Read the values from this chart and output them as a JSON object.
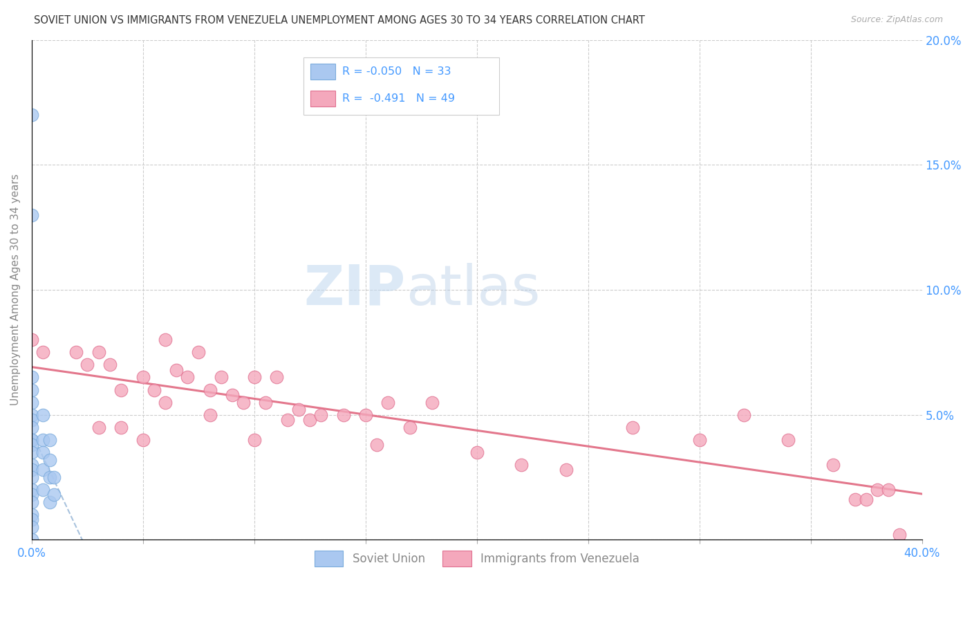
{
  "title": "SOVIET UNION VS IMMIGRANTS FROM VENEZUELA UNEMPLOYMENT AMONG AGES 30 TO 34 YEARS CORRELATION CHART",
  "source": "Source: ZipAtlas.com",
  "ylabel": "Unemployment Among Ages 30 to 34 years",
  "xlim": [
    0.0,
    0.4
  ],
  "ylim": [
    0.0,
    0.2
  ],
  "xticks": [
    0.0,
    0.05,
    0.1,
    0.15,
    0.2,
    0.25,
    0.3,
    0.35,
    0.4
  ],
  "yticks": [
    0.0,
    0.05,
    0.1,
    0.15,
    0.2
  ],
  "legend_label1": "Soviet Union",
  "legend_label2": "Immigrants from Venezuela",
  "R1": -0.05,
  "N1": 33,
  "R2": -0.491,
  "N2": 49,
  "color1": "#aac8f0",
  "color2": "#f4a8bc",
  "edge1": "#7aabdc",
  "edge2": "#e07090",
  "trend1_color": "#99b8d8",
  "trend2_color": "#e06880",
  "soviet_x": [
    0.0,
    0.0,
    0.0,
    0.0,
    0.0,
    0.0,
    0.0,
    0.0,
    0.0,
    0.0,
    0.0,
    0.0,
    0.0,
    0.0,
    0.0,
    0.0,
    0.0,
    0.0,
    0.0,
    0.0,
    0.0,
    0.0,
    0.005,
    0.005,
    0.005,
    0.005,
    0.005,
    0.008,
    0.008,
    0.008,
    0.008,
    0.01,
    0.01
  ],
  "soviet_y": [
    0.17,
    0.13,
    0.065,
    0.06,
    0.055,
    0.05,
    0.048,
    0.045,
    0.04,
    0.04,
    0.038,
    0.035,
    0.03,
    0.028,
    0.025,
    0.02,
    0.018,
    0.015,
    0.01,
    0.008,
    0.005,
    0.0,
    0.05,
    0.04,
    0.035,
    0.028,
    0.02,
    0.04,
    0.032,
    0.025,
    0.015,
    0.025,
    0.018
  ],
  "venezuela_x": [
    0.0,
    0.005,
    0.02,
    0.025,
    0.03,
    0.03,
    0.035,
    0.04,
    0.04,
    0.05,
    0.05,
    0.055,
    0.06,
    0.06,
    0.065,
    0.07,
    0.075,
    0.08,
    0.08,
    0.085,
    0.09,
    0.095,
    0.1,
    0.1,
    0.105,
    0.11,
    0.115,
    0.12,
    0.125,
    0.13,
    0.14,
    0.15,
    0.155,
    0.16,
    0.17,
    0.18,
    0.2,
    0.22,
    0.24,
    0.27,
    0.3,
    0.32,
    0.34,
    0.36,
    0.37,
    0.375,
    0.38,
    0.385,
    0.39
  ],
  "venezuela_y": [
    0.08,
    0.075,
    0.075,
    0.07,
    0.075,
    0.045,
    0.07,
    0.06,
    0.045,
    0.065,
    0.04,
    0.06,
    0.08,
    0.055,
    0.068,
    0.065,
    0.075,
    0.06,
    0.05,
    0.065,
    0.058,
    0.055,
    0.065,
    0.04,
    0.055,
    0.065,
    0.048,
    0.052,
    0.048,
    0.05,
    0.05,
    0.05,
    0.038,
    0.055,
    0.045,
    0.055,
    0.035,
    0.03,
    0.028,
    0.045,
    0.04,
    0.05,
    0.04,
    0.03,
    0.016,
    0.016,
    0.02,
    0.02,
    0.002
  ],
  "watermark_zip_color": "#c8dff5",
  "watermark_atlas_color": "#b8d0e8",
  "bg_color": "#ffffff",
  "grid_color": "#cccccc",
  "right_tick_color": "#4499ff",
  "left_tick_color": "#888888"
}
